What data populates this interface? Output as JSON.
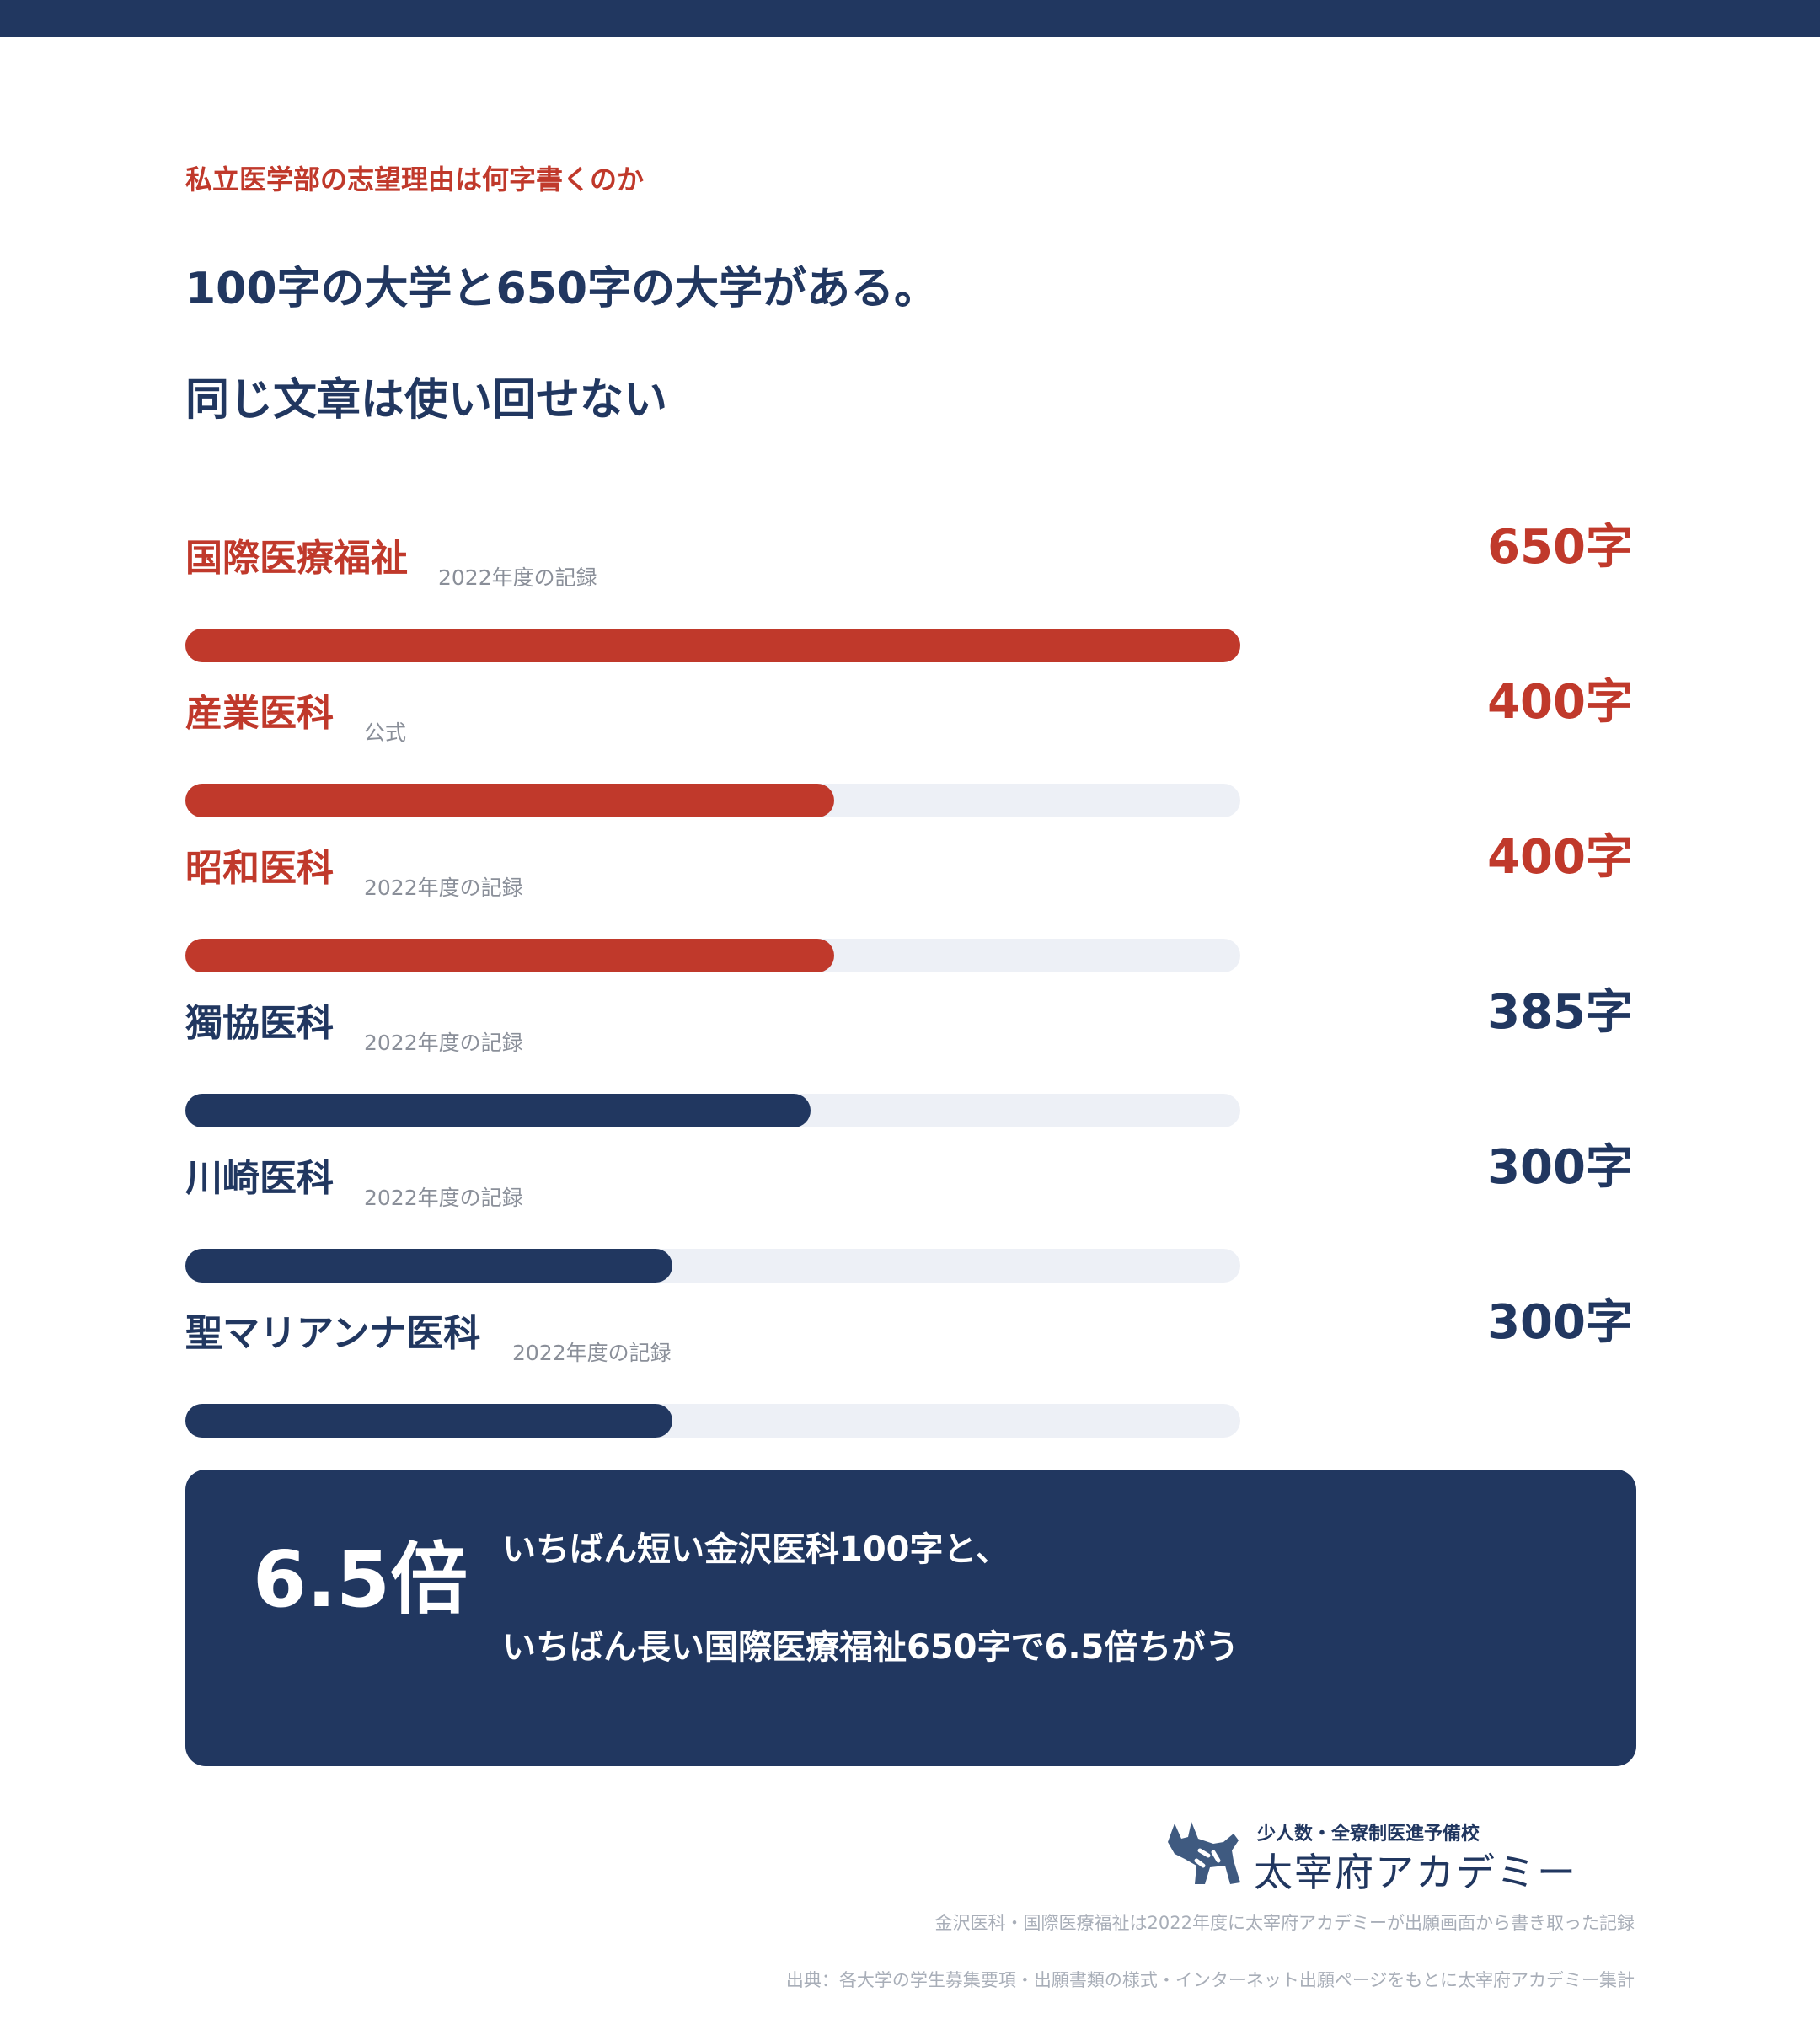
{
  "header": {
    "kicker": "私立医学部の志望理由は何字書くのか",
    "headline_1": "100字の大学と650字の大学がある。",
    "headline_2": "同じ文章は使い回せない"
  },
  "colors": {
    "accent_red": "#c0392b",
    "navy": "#213760",
    "track": "#edf0f6"
  },
  "chart_data": {
    "type": "bar",
    "orientation": "horizontal",
    "unit": "字",
    "xlim": [
      0,
      650
    ],
    "categories": [
      "国際医療福祉",
      "産業医科",
      "昭和医科",
      "獨協医科",
      "川崎医科",
      "聖マリアンナ医科"
    ],
    "values": [
      650,
      400,
      400,
      385,
      300,
      300
    ],
    "value_labels": [
      "650字",
      "400字",
      "400字",
      "385字",
      "300字",
      "300字"
    ],
    "notes": [
      "2022年度の記録",
      "公式",
      "2022年度の記録",
      "2022年度の記録",
      "2022年度の記録",
      "2022年度の記録"
    ],
    "highlight": [
      true,
      true,
      true,
      false,
      false,
      false
    ]
  },
  "callout": {
    "big": "6.5倍",
    "line_1": "いちばん短い金沢医科100字と、",
    "line_2": "いちばん長い国際医療福祉650字で6.5倍ちがう"
  },
  "logo": {
    "tagline": "少人数・全寮制医進予備校",
    "brand": "太宰府アカデミー"
  },
  "footer": {
    "note": "金沢医科・国際医療福祉は2022年度に太宰府アカデミーが出願画面から書き取った記録",
    "source": "出典：各大学の学生募集要項・出願書類の様式・インターネット出願ページをもとに太宰府アカデミー集計"
  }
}
